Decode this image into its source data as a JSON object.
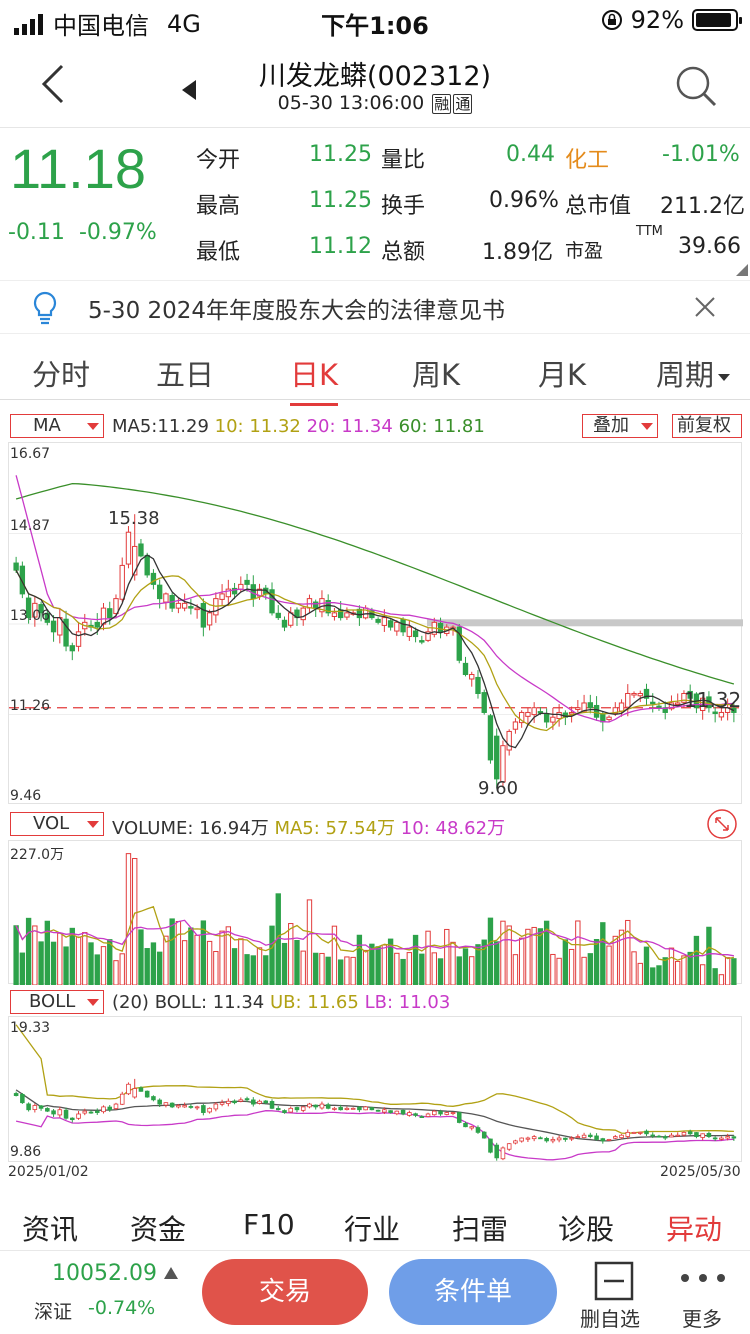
{
  "status": {
    "carrier": "中国电信",
    "network": "4G",
    "time": "下午1:06",
    "battery": "92%"
  },
  "nav": {
    "title": "川发龙蟒(002312)",
    "datetime": "05-30 13:06:00",
    "tag1": "融",
    "tag2": "通"
  },
  "quote": {
    "price": "11.18",
    "change": "-0.11",
    "pct": "-0.97%",
    "r1": {
      "l1": "今开",
      "v1": "11.25",
      "l2": "量比",
      "v2": "0.44",
      "l3": "化工",
      "v3": "-1.01%"
    },
    "r2": {
      "l1": "最高",
      "v1": "11.25",
      "l2": "换手",
      "v2": "0.96%",
      "l3": "总市值",
      "v3": "211.2亿"
    },
    "r3": {
      "l1": "最低",
      "v1": "11.12",
      "l2": "总额",
      "v2": "1.89亿",
      "l3": "市盈",
      "l3sup": "TTM",
      "v3": "39.66"
    }
  },
  "notice": {
    "text": "5-30 2024年年度股东大会的法律意见书"
  },
  "tabs": [
    "分时",
    "五日",
    "日K",
    "周K",
    "月K",
    "周期"
  ],
  "ma": {
    "selector": "MA",
    "ma5": "MA5:11.29",
    "ma10": "10: 11.32",
    "ma20": "20: 11.34",
    "ma60": "60: 11.81",
    "overlay": "叠加",
    "adjust": "前复权"
  },
  "kaxis": {
    "top": "16.67",
    "l2": "14.87",
    "l3": "13.06",
    "l4": "11.26",
    "bottom": "9.46",
    "high": "15.38",
    "low": "9.60",
    "last": "11.32"
  },
  "vol": {
    "selector": "VOL",
    "text": "VOLUME: 16.94万",
    "ma5": "MA5: 57.54万",
    "ma10": "10: 48.62万",
    "axis": "227.0万"
  },
  "boll": {
    "selector": "BOLL",
    "params": "(20)",
    "boll": "BOLL: 11.34",
    "ub": "UB: 11.65",
    "lb": "LB: 11.03",
    "top": "19.33",
    "bottom": "9.86",
    "start": "2025/01/02",
    "end": "2025/05/30"
  },
  "bottomtabs": [
    "资讯",
    "资金",
    "F10",
    "行业",
    "扫雷",
    "诊股",
    "异动"
  ],
  "footer": {
    "index": "10052.09",
    "name": "深证",
    "pct": "-0.74%",
    "trade": "交易",
    "cond": "条件单",
    "remove": "删自选",
    "more": "更多"
  },
  "colors": {
    "up": "#e23b3b",
    "down": "#2da24a",
    "ma5": "#333333",
    "ma10": "#b1a114",
    "ma20": "#c83ac8",
    "ma60": "#3a8f2a"
  },
  "chart_data": {
    "type": "candlestick",
    "title": "川发龙蟒(002312) 日K",
    "x_range": [
      "2025/01/02",
      "2025/05/30"
    ],
    "ylim": [
      9.46,
      16.67
    ],
    "closes": [
      14.2,
      13.7,
      13.2,
      13.5,
      13.3,
      13.1,
      12.9,
      13.2,
      12.6,
      12.5,
      12.9,
      13.1,
      13.0,
      13.0,
      13.4,
      13.2,
      13.6,
      14.3,
      15.0,
      14.7,
      14.5,
      14.1,
      13.9,
      13.6,
      13.7,
      13.4,
      13.5,
      13.5,
      13.4,
      13.4,
      13.0,
      13.3,
      13.6,
      13.7,
      13.8,
      13.7,
      13.9,
      13.9,
      13.6,
      13.8,
      13.7,
      13.3,
      13.2,
      13.0,
      13.3,
      13.2,
      13.4,
      13.6,
      13.4,
      13.6,
      13.3,
      13.3,
      13.2,
      13.3,
      13.3,
      13.2,
      13.4,
      13.2,
      13.1,
      13.2,
      13.0,
      13.1,
      12.9,
      13.0,
      12.8,
      12.7,
      12.9,
      13.1,
      12.9,
      13.0,
      13.0,
      12.3,
      12.0,
      12.0,
      11.6,
      11.2,
      10.2,
      9.8,
      10.5,
      10.8,
      11.0,
      11.2,
      11.2,
      11.3,
      11.2,
      11.0,
      11.1,
      11.2,
      11.1,
      11.2,
      11.3,
      11.4,
      11.3,
      11.1,
      11.0,
      11.1,
      11.3,
      11.4,
      11.6,
      11.6,
      11.6,
      11.5,
      11.4,
      11.3,
      11.2,
      11.4,
      11.4,
      11.6,
      11.5,
      11.3,
      11.5,
      11.3,
      11.2,
      11.2,
      11.3,
      11.2
    ],
    "series": [
      {
        "name": "MA5",
        "last": 11.29
      },
      {
        "name": "MA10",
        "last": 11.32
      },
      {
        "name": "MA20",
        "last": 11.34
      },
      {
        "name": "MA60",
        "last": 11.81
      }
    ],
    "annotations": {
      "high": 15.38,
      "low": 9.6,
      "last": 11.32
    },
    "volume": {
      "ylim": [
        0,
        227.0
      ],
      "unit": "万",
      "last": 16.94,
      "ma5": 57.54,
      "ma10": 48.62
    },
    "boll": {
      "ylim": [
        9.86,
        19.33
      ],
      "mid": 11.34,
      "ub": 11.65,
      "lb": 11.03
    }
  }
}
